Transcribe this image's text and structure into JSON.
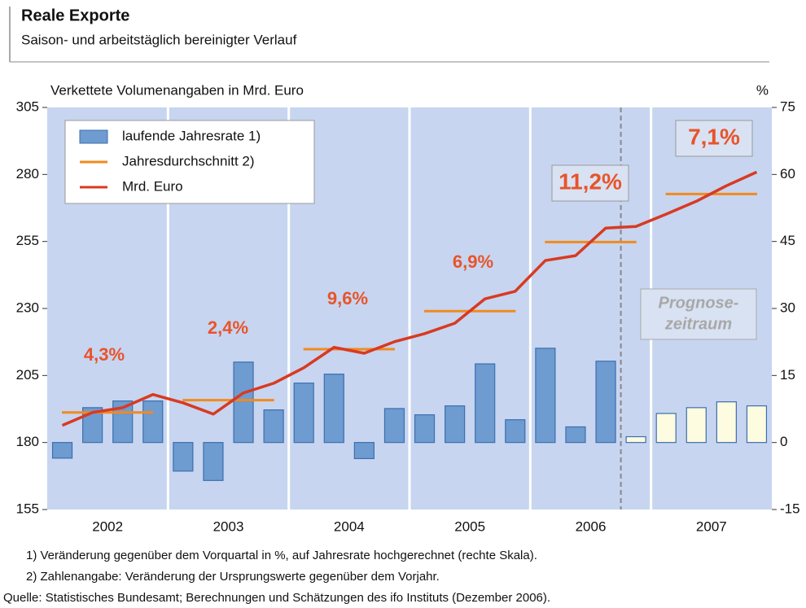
{
  "chart_data": {
    "type": "bar",
    "title": "Reale Exporte",
    "subtitle": "Saison- und arbeitstäglich bereinigter Verlauf",
    "y_label": "Verkettete Volumenangaben in Mrd. Euro",
    "y2_label": "%",
    "groups": [
      "2002",
      "2003",
      "2004",
      "2005",
      "2006",
      "2007"
    ],
    "ylim": [
      155,
      305
    ],
    "yticks": [
      155,
      180,
      205,
      230,
      255,
      280,
      305
    ],
    "y2lim": [
      -15,
      75
    ],
    "y2ticks": [
      -15,
      0,
      15,
      30,
      45,
      60,
      75
    ],
    "series": [
      {
        "name": "laufende Jahresrate 1)",
        "type": "bar",
        "axis": "y2",
        "color": "#6e9bd0",
        "colors": [
          "#6e9bd0",
          "#6e9bd0",
          "#6e9bd0",
          "#6e9bd0",
          "#6e9bd0",
          "#6e9bd0",
          "#6e9bd0",
          "#6e9bd0",
          "#6e9bd0",
          "#6e9bd0",
          "#6e9bd0",
          "#6e9bd0",
          "#6e9bd0",
          "#6e9bd0",
          "#6e9bd0",
          "#6e9bd0",
          "#6e9bd0",
          "#6e9bd0",
          "#6e9bd0",
          "#fdfbe0",
          "#fdfbe0",
          "#fdfbe0",
          "#fdfbe0",
          "#fdfbe0"
        ],
        "values": [
          -3.5,
          7.8,
          9.3,
          9.3,
          -6.4,
          -8.5,
          18,
          7.3,
          13.3,
          15.3,
          -3.6,
          7.6,
          6.2,
          8.2,
          17.6,
          5.1,
          21.1,
          3.5,
          18.2,
          1.3,
          6.5,
          7.8,
          9.1,
          8.2
        ]
      },
      {
        "name": "Jahresdurchschnitt 2)",
        "type": "step",
        "axis": "y",
        "color": "#f28a1e",
        "values": [
          191.2,
          195.8,
          214.8,
          229,
          254.8,
          272.7
        ]
      },
      {
        "name": "Mrd. Euro",
        "type": "line",
        "axis": "y",
        "color": "#d83a22",
        "values": [
          186.4,
          191.2,
          193,
          197.9,
          194.8,
          190.6,
          198.5,
          202.1,
          207.9,
          215.5,
          213.3,
          217.6,
          220.6,
          224.5,
          233.6,
          236.4,
          247.9,
          249.7,
          260,
          260.6,
          265.2,
          270,
          275.8,
          280.9
        ]
      }
    ],
    "annotations": [
      "4,3%",
      "2,4%",
      "9,6%",
      "6,9%",
      "11,2%",
      "7,1%"
    ],
    "forecast_label": [
      "Prognose-",
      "zeitraum"
    ],
    "footnotes": [
      "1) Veränderung gegenüber dem Vorquartal in %, auf Jahresrate hochgerechnet (rechte Skala).",
      "2) Zahlenangabe: Veränderung der Ursprungswerte gegenüber dem Vorjahr.",
      "Quelle: Statistisches Bundesamt; Berechnungen und Schätzungen des ifo Instituts (Dezember 2006)."
    ]
  }
}
